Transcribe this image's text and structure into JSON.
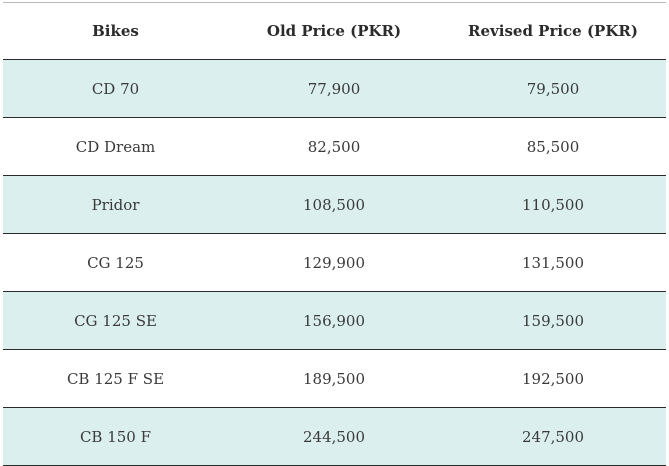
{
  "table": {
    "headers": [
      "Bikes",
      "Old Price (PKR)",
      "Revised Price (PKR)"
    ],
    "rows": [
      [
        "CD 70",
        "77,900",
        "79,500"
      ],
      [
        "CD Dream",
        "82,500",
        "85,500"
      ],
      [
        "Pridor",
        "108,500",
        "110,500"
      ],
      [
        "CG 125",
        "129,900",
        "131,500"
      ],
      [
        "CG 125 SE",
        "156,900",
        "159,500"
      ],
      [
        "CB 125 F SE",
        "189,500",
        "192,500"
      ],
      [
        "CB 150 F",
        "244,500",
        "247,500"
      ]
    ]
  },
  "colors": {
    "stripe": "#dcefef",
    "border": "#2b2b2b",
    "text": "#333333"
  }
}
